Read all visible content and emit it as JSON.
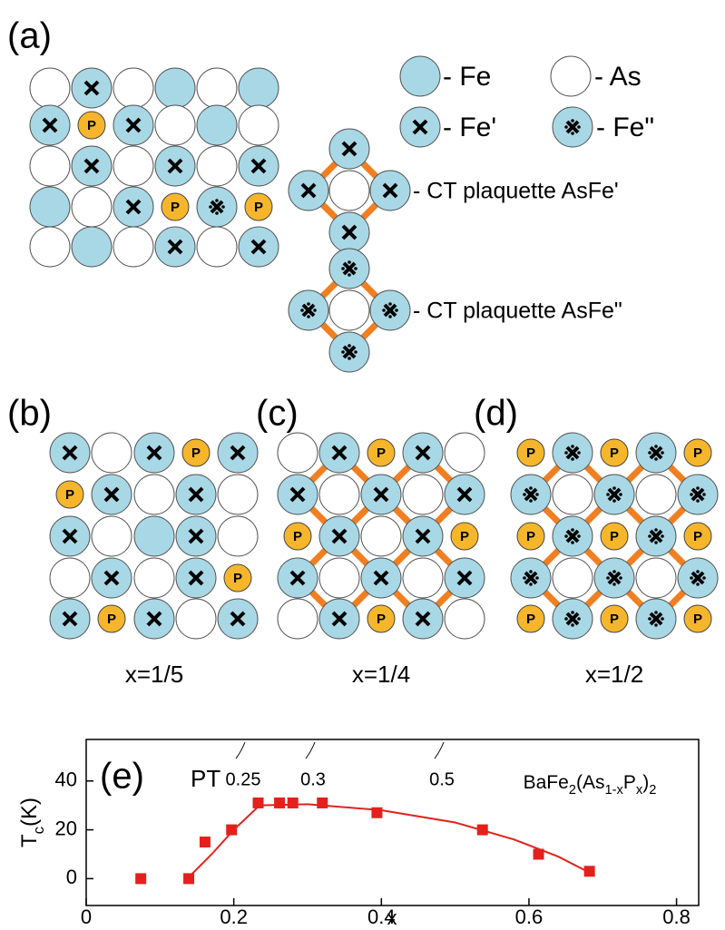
{
  "panel_labels": [
    "(a)",
    "(b)",
    "(c)",
    "(d)"
  ],
  "legend": {
    "fe": "- Fe",
    "as": "- As",
    "fe1": "- Fe'",
    "fe2": "- Fe\"",
    "ct1": "- CT plaquette AsFe'",
    "ct2": "- CT plaquette AsFe\""
  },
  "site_label": "P",
  "captions": [
    "x=1/5",
    "x=1/4",
    "x=1/2"
  ],
  "chart_data": {
    "type": "scatter",
    "panel_label": "(e)",
    "annotations": [
      "PT",
      "0.25",
      "0.3",
      "0.5"
    ],
    "compound": [
      {
        "text": "BaFe"
      },
      {
        "text": "2",
        "sub": true
      },
      {
        "text": "(As"
      },
      {
        "text": "1-x",
        "sub": true
      },
      {
        "text": "P"
      },
      {
        "text": "x",
        "sub": true
      },
      {
        "text": ")"
      },
      {
        "text": "2",
        "sub": true
      }
    ],
    "xlabel": "x",
    "ylabel": [
      {
        "text": "T"
      },
      {
        "text": "c",
        "sub": true
      },
      {
        "text": "(K)"
      }
    ],
    "xlim": [
      0,
      0.83
    ],
    "ylim": [
      -11,
      57
    ],
    "xticks": [
      0,
      0.2,
      0.4,
      0.6,
      0.8
    ],
    "yticks": [
      0,
      20,
      40
    ],
    "series": [
      {
        "color": "#e3211c",
        "marker": "square",
        "x": [
          0.074,
          0.139,
          0.161,
          0.197,
          0.233,
          0.262,
          0.28,
          0.32,
          0.394,
          0.537,
          0.613,
          0.682
        ],
        "values": [
          0,
          0,
          15,
          20,
          31,
          31,
          31,
          31,
          27,
          20,
          10,
          3
        ]
      },
      {
        "color": "#e3211c",
        "line": true,
        "x": [
          0.137,
          0.17,
          0.2,
          0.235,
          0.3,
          0.4,
          0.5,
          0.58,
          0.64,
          0.685
        ],
        "values": [
          0,
          10,
          20,
          30,
          30.5,
          28,
          23,
          16,
          9,
          2
        ]
      }
    ]
  }
}
